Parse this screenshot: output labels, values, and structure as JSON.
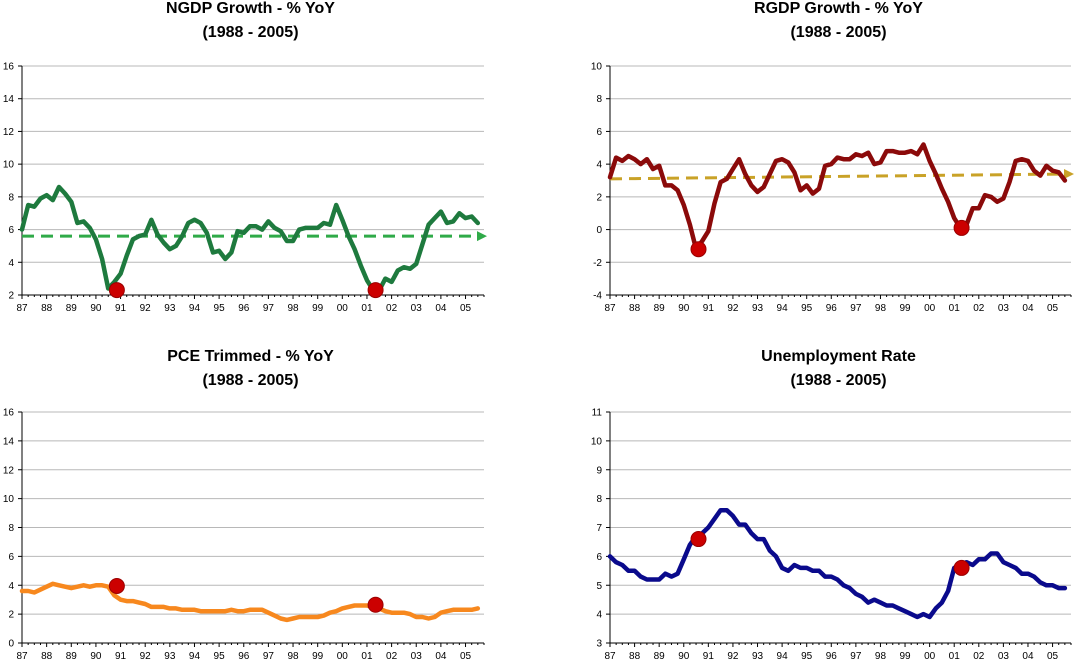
{
  "x_tick_labels": [
    "87",
    "88",
    "89",
    "90",
    "91",
    "92",
    "93",
    "94",
    "95",
    "96",
    "97",
    "98",
    "99",
    "00",
    "01",
    "02",
    "03",
    "04",
    "05"
  ],
  "chart_data": [
    {
      "type": "line",
      "title": "NGDP Growth - % YoY",
      "subtitle": "(1988 - 2005)",
      "xlim": [
        1987.0,
        2005.75
      ],
      "ylim": [
        2,
        16
      ],
      "yticks": [
        2,
        4,
        6,
        8,
        10,
        12,
        14,
        16
      ],
      "color": "#1e7a3e",
      "trend": {
        "color": "#2faa48",
        "y0": 5.6,
        "y1": 5.6
      },
      "markers": [
        {
          "x": 1990.85,
          "y": 2.3
        },
        {
          "x": 2001.35,
          "y": 2.3
        }
      ],
      "series": [
        {
          "x": [
            1987.0,
            1987.25,
            1987.5,
            1987.75,
            1988.0,
            1988.25,
            1988.5,
            1988.75,
            1989.0,
            1989.25,
            1989.5,
            1989.75,
            1990.0,
            1990.25,
            1990.5,
            1990.75,
            1991.0,
            1991.25,
            1991.5,
            1991.75,
            1992.0,
            1992.25,
            1992.5,
            1992.75,
            1993.0,
            1993.25,
            1993.5,
            1993.75,
            1994.0,
            1994.25,
            1994.5,
            1994.75,
            1995.0,
            1995.25,
            1995.5,
            1995.75,
            1996.0,
            1996.25,
            1996.5,
            1996.75,
            1997.0,
            1997.25,
            1997.5,
            1997.75,
            1998.0,
            1998.25,
            1998.5,
            1998.75,
            1999.0,
            1999.25,
            1999.5,
            1999.75,
            2000.0,
            2000.25,
            2000.5,
            2000.75,
            2001.0,
            2001.25,
            2001.5,
            2001.75,
            2002.0,
            2002.25,
            2002.5,
            2002.75,
            2003.0,
            2003.25,
            2003.5,
            2003.75,
            2004.0,
            2004.25,
            2004.5,
            2004.75,
            2005.0,
            2005.25,
            2005.5
          ],
          "values": [
            6.0,
            7.5,
            7.4,
            7.9,
            8.1,
            7.8,
            8.6,
            8.2,
            7.7,
            6.4,
            6.5,
            6.1,
            5.4,
            4.2,
            2.4,
            2.8,
            3.3,
            4.4,
            5.4,
            5.6,
            5.7,
            6.6,
            5.7,
            5.2,
            4.8,
            5.0,
            5.6,
            6.4,
            6.6,
            6.4,
            5.8,
            4.6,
            4.7,
            4.2,
            4.6,
            5.9,
            5.8,
            6.2,
            6.2,
            6.0,
            6.5,
            6.1,
            5.9,
            5.3,
            5.3,
            6.0,
            6.1,
            6.1,
            6.1,
            6.4,
            6.3,
            7.5,
            6.6,
            5.6,
            4.8,
            3.8,
            2.9,
            2.3,
            2.3,
            3.0,
            2.8,
            3.5,
            3.7,
            3.6,
            3.9,
            5.1,
            6.3,
            6.7,
            7.1,
            6.4,
            6.5,
            7.0,
            6.7,
            6.8,
            6.4
          ]
        }
      ]
    },
    {
      "type": "line",
      "title": "RGDP Growth - % YoY",
      "subtitle": "(1988 - 2005)",
      "xlim": [
        1987.0,
        2005.75
      ],
      "ylim": [
        -4,
        10
      ],
      "yticks": [
        -4,
        -2,
        0,
        2,
        4,
        6,
        8,
        10
      ],
      "color": "#8b0a0a",
      "trend": {
        "color": "#c9a227",
        "y0": 3.1,
        "y1": 3.4
      },
      "markers": [
        {
          "x": 1990.6,
          "y": -1.2
        },
        {
          "x": 2001.3,
          "y": 0.1
        }
      ],
      "series": [
        {
          "x": [
            1987.0,
            1987.25,
            1987.5,
            1987.75,
            1988.0,
            1988.25,
            1988.5,
            1988.75,
            1989.0,
            1989.25,
            1989.5,
            1989.75,
            1990.0,
            1990.25,
            1990.5,
            1990.75,
            1991.0,
            1991.25,
            1991.5,
            1991.75,
            1992.0,
            1992.25,
            1992.5,
            1992.75,
            1993.0,
            1993.25,
            1993.5,
            1993.75,
            1994.0,
            1994.25,
            1994.5,
            1994.75,
            1995.0,
            1995.25,
            1995.5,
            1995.75,
            1996.0,
            1996.25,
            1996.5,
            1996.75,
            1997.0,
            1997.25,
            1997.5,
            1997.75,
            1998.0,
            1998.25,
            1998.5,
            1998.75,
            1999.0,
            1999.25,
            1999.5,
            1999.75,
            2000.0,
            2000.25,
            2000.5,
            2000.75,
            2001.0,
            2001.25,
            2001.5,
            2001.75,
            2002.0,
            2002.25,
            2002.5,
            2002.75,
            2003.0,
            2003.25,
            2003.5,
            2003.75,
            2004.0,
            2004.25,
            2004.5,
            2004.75,
            2005.0,
            2005.25,
            2005.5
          ],
          "values": [
            3.2,
            4.4,
            4.2,
            4.5,
            4.3,
            4.0,
            4.3,
            3.7,
            3.9,
            2.7,
            2.7,
            2.4,
            1.5,
            0.3,
            -1.2,
            -0.7,
            -0.1,
            1.6,
            2.9,
            3.1,
            3.7,
            4.3,
            3.4,
            2.7,
            2.3,
            2.6,
            3.4,
            4.2,
            4.3,
            4.1,
            3.5,
            2.4,
            2.7,
            2.2,
            2.5,
            3.9,
            4.0,
            4.4,
            4.3,
            4.3,
            4.6,
            4.5,
            4.7,
            4.0,
            4.1,
            4.8,
            4.8,
            4.7,
            4.7,
            4.8,
            4.6,
            5.2,
            4.2,
            3.4,
            2.5,
            1.7,
            0.7,
            0.1,
            0.3,
            1.3,
            1.3,
            2.1,
            2.0,
            1.7,
            1.9,
            2.9,
            4.2,
            4.3,
            4.2,
            3.6,
            3.3,
            3.9,
            3.6,
            3.5,
            3.0
          ]
        }
      ]
    },
    {
      "type": "line",
      "title": "PCE Trimmed - % YoY",
      "subtitle": "(1988 - 2005)",
      "xlim": [
        1987.0,
        2005.75
      ],
      "ylim": [
        0,
        16
      ],
      "yticks": [
        0,
        2,
        4,
        6,
        8,
        10,
        12,
        14,
        16
      ],
      "color": "#f7881e",
      "markers": [
        {
          "x": 1990.85,
          "y": 3.95
        },
        {
          "x": 2001.35,
          "y": 2.65
        }
      ],
      "series": [
        {
          "x": [
            1987.0,
            1987.25,
            1987.5,
            1987.75,
            1988.0,
            1988.25,
            1988.5,
            1988.75,
            1989.0,
            1989.25,
            1989.5,
            1989.75,
            1990.0,
            1990.25,
            1990.5,
            1990.75,
            1991.0,
            1991.25,
            1991.5,
            1991.75,
            1992.0,
            1992.25,
            1992.5,
            1992.75,
            1993.0,
            1993.25,
            1993.5,
            1993.75,
            1994.0,
            1994.25,
            1994.5,
            1994.75,
            1995.0,
            1995.25,
            1995.5,
            1995.75,
            1996.0,
            1996.25,
            1996.5,
            1996.75,
            1997.0,
            1997.25,
            1997.5,
            1997.75,
            1998.0,
            1998.25,
            1998.5,
            1998.75,
            1999.0,
            1999.25,
            1999.5,
            1999.75,
            2000.0,
            2000.25,
            2000.5,
            2000.75,
            2001.0,
            2001.25,
            2001.5,
            2001.75,
            2002.0,
            2002.25,
            2002.5,
            2002.75,
            2003.0,
            2003.25,
            2003.5,
            2003.75,
            2004.0,
            2004.25,
            2004.5,
            2004.75,
            2005.0,
            2005.25,
            2005.5
          ],
          "values": [
            3.6,
            3.6,
            3.5,
            3.7,
            3.9,
            4.1,
            4.0,
            3.9,
            3.8,
            3.9,
            4.0,
            3.9,
            4.0,
            4.0,
            3.9,
            3.3,
            3.0,
            2.9,
            2.9,
            2.8,
            2.7,
            2.5,
            2.5,
            2.5,
            2.4,
            2.4,
            2.3,
            2.3,
            2.3,
            2.2,
            2.2,
            2.2,
            2.2,
            2.2,
            2.3,
            2.2,
            2.2,
            2.3,
            2.3,
            2.3,
            2.1,
            1.9,
            1.7,
            1.6,
            1.7,
            1.8,
            1.8,
            1.8,
            1.8,
            1.9,
            2.1,
            2.2,
            2.4,
            2.5,
            2.6,
            2.6,
            2.6,
            2.5,
            2.4,
            2.2,
            2.1,
            2.1,
            2.1,
            2.0,
            1.8,
            1.8,
            1.7,
            1.8,
            2.1,
            2.2,
            2.3,
            2.3,
            2.3,
            2.3,
            2.4
          ]
        }
      ]
    },
    {
      "type": "line",
      "title": "Unemployment Rate",
      "subtitle": "(1988 - 2005)",
      "xlim": [
        1987.0,
        2005.75
      ],
      "ylim": [
        3,
        11
      ],
      "yticks": [
        3,
        4,
        5,
        6,
        7,
        8,
        9,
        10,
        11
      ],
      "color": "#0a0a8c",
      "markers": [
        {
          "x": 1990.6,
          "y": 6.6
        },
        {
          "x": 2001.3,
          "y": 5.6
        }
      ],
      "series": [
        {
          "x": [
            1987.0,
            1987.25,
            1987.5,
            1987.75,
            1988.0,
            1988.25,
            1988.5,
            1988.75,
            1989.0,
            1989.25,
            1989.5,
            1989.75,
            1990.0,
            1990.25,
            1990.5,
            1990.75,
            1991.0,
            1991.25,
            1991.5,
            1991.75,
            1992.0,
            1992.25,
            1992.5,
            1992.75,
            1993.0,
            1993.25,
            1993.5,
            1993.75,
            1994.0,
            1994.25,
            1994.5,
            1994.75,
            1995.0,
            1995.25,
            1995.5,
            1995.75,
            1996.0,
            1996.25,
            1996.5,
            1996.75,
            1997.0,
            1997.25,
            1997.5,
            1997.75,
            1998.0,
            1998.25,
            1998.5,
            1998.75,
            1999.0,
            1999.25,
            1999.5,
            1999.75,
            2000.0,
            2000.25,
            2000.5,
            2000.75,
            2001.0,
            2001.25,
            2001.5,
            2001.75,
            2002.0,
            2002.25,
            2002.5,
            2002.75,
            2003.0,
            2003.25,
            2003.5,
            2003.75,
            2004.0,
            2004.25,
            2004.5,
            2004.75,
            2005.0,
            2005.25,
            2005.5
          ],
          "values": [
            6.0,
            5.8,
            5.7,
            5.5,
            5.5,
            5.3,
            5.2,
            5.2,
            5.2,
            5.4,
            5.3,
            5.4,
            5.9,
            6.4,
            6.7,
            6.8,
            7.0,
            7.3,
            7.6,
            7.6,
            7.4,
            7.1,
            7.1,
            6.8,
            6.6,
            6.6,
            6.2,
            6.0,
            5.6,
            5.5,
            5.7,
            5.6,
            5.6,
            5.5,
            5.5,
            5.3,
            5.3,
            5.2,
            5.0,
            4.9,
            4.7,
            4.6,
            4.4,
            4.5,
            4.4,
            4.3,
            4.3,
            4.2,
            4.1,
            4.0,
            3.9,
            4.0,
            3.9,
            4.2,
            4.4,
            4.8,
            5.6,
            5.7,
            5.8,
            5.7,
            5.9,
            5.9,
            6.1,
            6.1,
            5.8,
            5.7,
            5.6,
            5.4,
            5.4,
            5.3,
            5.1,
            5.0,
            5.0,
            4.9,
            4.9
          ]
        }
      ]
    }
  ]
}
